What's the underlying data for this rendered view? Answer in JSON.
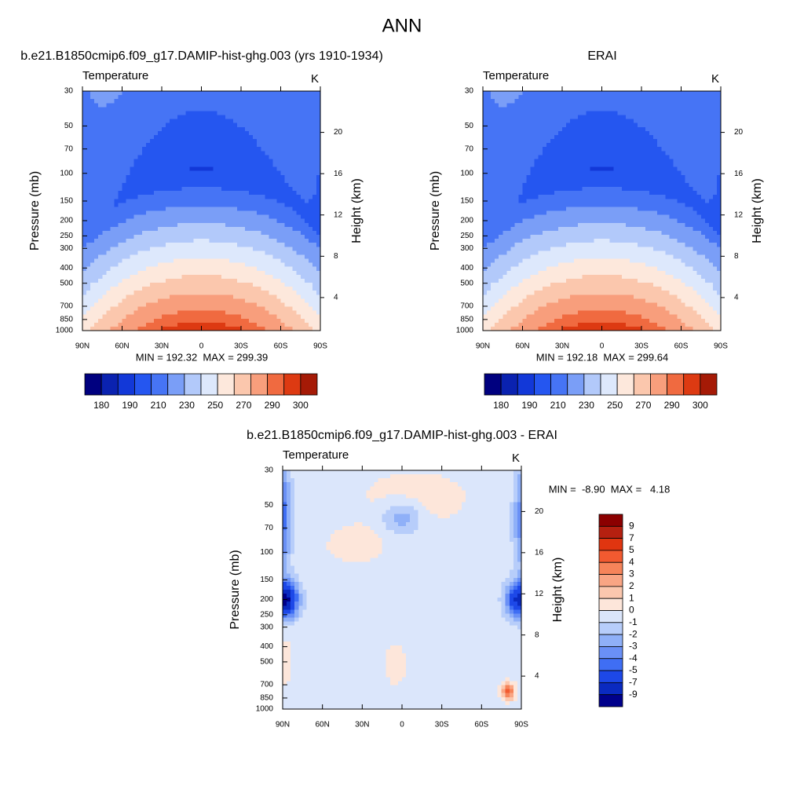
{
  "title": "ANN",
  "chart_data": [
    {
      "type": "contour",
      "title": "b.e21.B1850cmip6.f09_g17.DAMIP-hist-ghg.003 (yrs 1910-1934)",
      "subtitle_left": "Temperature",
      "subtitle_right": "K",
      "stats": "MIN = 192.32  MAX = 299.39",
      "ylabel": "Pressure (mb)",
      "y2label": "Height (km)",
      "log_y": true,
      "xlim": [
        90,
        -90
      ],
      "xticks": [
        {
          "value": 90,
          "label": "90N"
        },
        {
          "value": 60,
          "label": "60N"
        },
        {
          "value": 30,
          "label": "30N"
        },
        0,
        {
          "value": -30,
          "label": "30S"
        },
        {
          "value": -60,
          "label": "60S"
        },
        {
          "value": -90,
          "label": "90S"
        }
      ],
      "ylim": [
        1000,
        30
      ],
      "yticks": [
        30,
        50,
        70,
        100,
        150,
        200,
        250,
        300,
        400,
        500,
        700,
        850,
        1000
      ],
      "y2lim": [
        0.8,
        24
      ],
      "y2ticks": [
        4,
        8,
        12,
        16,
        20
      ],
      "colorbar": {
        "orientation": "horizontal",
        "labels": [
          180,
          190,
          210,
          230,
          250,
          270,
          290,
          300
        ],
        "colors": [
          "#00007f",
          "#0a22b0",
          "#1238d8",
          "#2556f0",
          "#4674f5",
          "#7a9ef7",
          "#b2c9fa",
          "#dde8fc",
          "#fde8dc",
          "#fbc7ad",
          "#f89e7c",
          "#f06a40",
          "#dd3a12",
          "#a51a06"
        ]
      }
    },
    {
      "type": "contour",
      "title": "ERAI",
      "subtitle_left": "Temperature",
      "subtitle_right": "K",
      "stats": "MIN = 192.18  MAX = 299.64",
      "ylabel": "Pressure (mb)",
      "y2label": "Height (km)",
      "log_y": true,
      "xlim": [
        90,
        -90
      ],
      "xticks": [
        {
          "value": 90,
          "label": "90N"
        },
        {
          "value": 60,
          "label": "60N"
        },
        {
          "value": 30,
          "label": "30N"
        },
        0,
        {
          "value": -30,
          "label": "30S"
        },
        {
          "value": -60,
          "label": "60S"
        },
        {
          "value": -90,
          "label": "90S"
        }
      ],
      "ylim": [
        1000,
        30
      ],
      "yticks": [
        30,
        50,
        70,
        100,
        150,
        200,
        250,
        300,
        400,
        500,
        700,
        850,
        1000
      ],
      "y2lim": [
        0.8,
        24
      ],
      "y2ticks": [
        4,
        8,
        12,
        16,
        20
      ],
      "colorbar": {
        "orientation": "horizontal",
        "labels": [
          180,
          190,
          210,
          230,
          250,
          270,
          290,
          300
        ],
        "colors": [
          "#00007f",
          "#0a22b0",
          "#1238d8",
          "#2556f0",
          "#4674f5",
          "#7a9ef7",
          "#b2c9fa",
          "#dde8fc",
          "#fde8dc",
          "#fbc7ad",
          "#f89e7c",
          "#f06a40",
          "#dd3a12",
          "#a51a06"
        ]
      }
    },
    {
      "type": "contour",
      "title": "b.e21.B1850cmip6.f09_g17.DAMIP-hist-ghg.003 - ERAI",
      "subtitle_left": "Temperature",
      "subtitle_right": "K",
      "stats": "MIN =  -8.90  MAX =   4.18",
      "ylabel": "Pressure (mb)",
      "y2label": "Height (km)",
      "log_y": true,
      "xlim": [
        90,
        -90
      ],
      "xticks": [
        {
          "value": 90,
          "label": "90N"
        },
        {
          "value": 60,
          "label": "60N"
        },
        {
          "value": 30,
          "label": "30N"
        },
        0,
        {
          "value": -30,
          "label": "30S"
        },
        {
          "value": -60,
          "label": "60S"
        },
        {
          "value": -90,
          "label": "90S"
        }
      ],
      "ylim": [
        1000,
        30
      ],
      "yticks": [
        30,
        50,
        70,
        100,
        150,
        200,
        250,
        300,
        400,
        500,
        700,
        850,
        1000
      ],
      "y2lim": [
        0.8,
        24
      ],
      "y2ticks": [
        4,
        8,
        12,
        16,
        20
      ],
      "colorbar": {
        "orientation": "vertical",
        "labels": [
          9,
          7,
          5,
          4,
          3,
          2,
          1,
          0,
          -1,
          -2,
          -3,
          -4,
          -5,
          -7,
          -9
        ],
        "colors": [
          "#8b0000",
          "#b52010",
          "#e03510",
          "#f25a30",
          "#f6845a",
          "#f9a584",
          "#fbc7ae",
          "#fde6da",
          "#dbe6fb",
          "#b7cdfa",
          "#8fb0f8",
          "#6a90f6",
          "#3f6ef4",
          "#1d48e8",
          "#0a2ac0",
          "#00008b"
        ]
      }
    }
  ]
}
